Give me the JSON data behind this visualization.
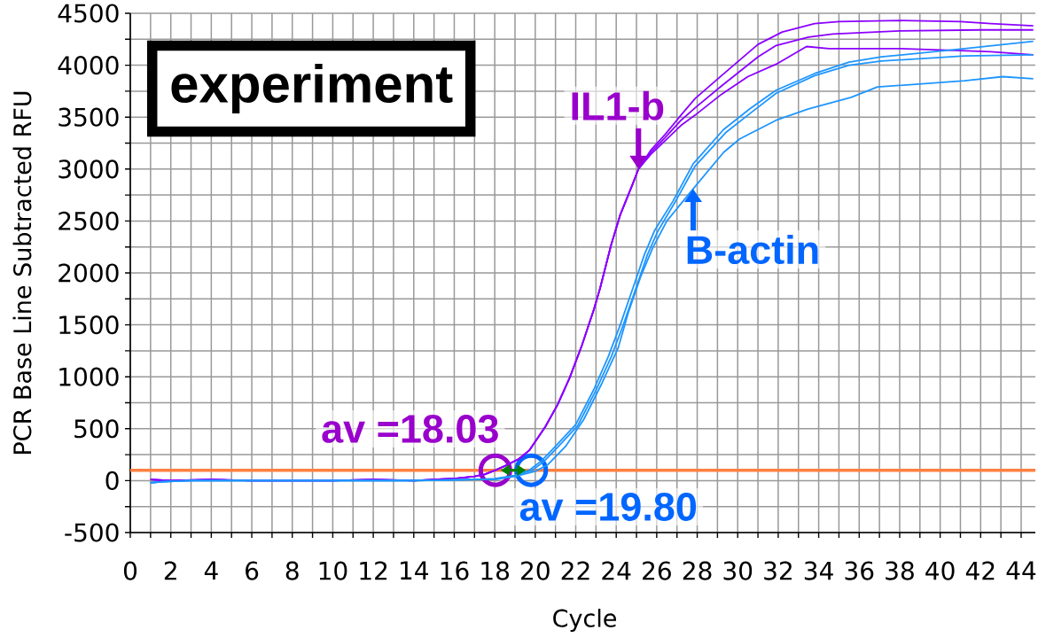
{
  "chart_data": {
    "type": "line",
    "xlabel": "Cycle",
    "ylabel": "PCR Base Line Subtracted RFU",
    "xlim": [
      0,
      44.7
    ],
    "ylim": [
      -500,
      4500
    ],
    "xticks": [
      0,
      {
        "value": 1,
        "label": null
      },
      2,
      {
        "value": 3,
        "label": null
      },
      4,
      {
        "value": 5,
        "label": null
      },
      6,
      {
        "value": 7,
        "label": null
      },
      8,
      {
        "value": 9,
        "label": null
      },
      10,
      {
        "value": 11,
        "label": null
      },
      12,
      {
        "value": 13,
        "label": null
      },
      14,
      {
        "value": 15,
        "label": null
      },
      16,
      {
        "value": 17,
        "label": null
      },
      18,
      {
        "value": 19,
        "label": null
      },
      20,
      {
        "value": 21,
        "label": null
      },
      22,
      {
        "value": 23,
        "label": null
      },
      24,
      {
        "value": 25,
        "label": null
      },
      26,
      {
        "value": 27,
        "label": null
      },
      28,
      {
        "value": 29,
        "label": null
      },
      30,
      {
        "value": 31,
        "label": null
      },
      32,
      {
        "value": 33,
        "label": null
      },
      34,
      {
        "value": 35,
        "label": null
      },
      36,
      {
        "value": 37,
        "label": null
      },
      38,
      {
        "value": 39,
        "label": null
      },
      40,
      {
        "value": 41,
        "label": null
      },
      42,
      {
        "value": 43,
        "label": null
      },
      44
    ],
    "yticks": [
      -500,
      {
        "value": -250,
        "label": null
      },
      0,
      {
        "value": 250,
        "label": null
      },
      500,
      {
        "value": 750,
        "label": null
      },
      1000,
      {
        "value": 1250,
        "label": null
      },
      1500,
      {
        "value": 1750,
        "label": null
      },
      2000,
      {
        "value": 2250,
        "label": null
      },
      2500,
      {
        "value": 2750,
        "label": null
      },
      3000,
      {
        "value": 3250,
        "label": null
      },
      3500,
      {
        "value": 3750,
        "label": null
      },
      4000,
      {
        "value": 4250,
        "label": null
      },
      4500
    ],
    "grid": true,
    "series": [
      {
        "color": "#8c00ff",
        "x": [
          1,
          2,
          4,
          6,
          8,
          10,
          12,
          14,
          15,
          16,
          17,
          17.5,
          18.03,
          18.6,
          19.2,
          19.7,
          20.5,
          21.1,
          21.7,
          22.3,
          22.9,
          23.2,
          23.75,
          24.2,
          24.8,
          25.1,
          25.7,
          26.4,
          27.2,
          27.9,
          29.2,
          31,
          32.2,
          33.8,
          35,
          38,
          41,
          42.5,
          44.6
        ],
        "values": [
          10,
          0,
          10,
          0,
          0,
          0,
          10,
          0,
          10,
          20,
          40,
          60,
          100,
          150,
          210,
          290,
          520,
          730,
          990,
          1300,
          1650,
          1850,
          2270,
          2560,
          2850,
          3000,
          3180,
          3330,
          3520,
          3680,
          3900,
          4200,
          4320,
          4400,
          4420,
          4430,
          4420,
          4400,
          4380
        ]
      },
      {
        "color": "#8c00ff",
        "x": [
          1,
          2,
          4,
          6,
          8,
          10,
          12,
          14,
          15,
          16,
          17,
          17.5,
          18.03,
          18.6,
          19.2,
          19.7,
          20.5,
          21.1,
          21.7,
          22.3,
          22.9,
          23.2,
          23.75,
          24.2,
          24.8,
          25.1,
          25.7,
          26.4,
          27.2,
          27.9,
          29.2,
          31,
          31.9,
          33.5,
          34.7,
          38,
          42,
          44.6
        ],
        "values": [
          10,
          0,
          10,
          0,
          0,
          0,
          10,
          0,
          10,
          20,
          40,
          60,
          100,
          150,
          210,
          290,
          520,
          730,
          990,
          1300,
          1650,
          1850,
          2270,
          2560,
          2850,
          3000,
          3160,
          3300,
          3470,
          3590,
          3800,
          4080,
          4190,
          4270,
          4300,
          4330,
          4340,
          4340
        ]
      },
      {
        "color": "#8c00ff",
        "x": [
          1,
          2,
          4,
          6,
          8,
          10,
          12,
          14,
          15,
          16,
          17,
          17.5,
          18.03,
          18.6,
          19.2,
          19.7,
          20.5,
          21.1,
          21.7,
          22.3,
          22.9,
          23.2,
          23.75,
          24.2,
          24.8,
          25.1,
          25.7,
          26.4,
          27.2,
          27.9,
          29.2,
          30.5,
          31.9,
          33.4,
          34.5,
          38,
          41,
          42.5,
          44.6
        ],
        "values": [
          10,
          0,
          10,
          0,
          0,
          0,
          10,
          0,
          10,
          20,
          40,
          60,
          100,
          150,
          210,
          290,
          520,
          730,
          990,
          1300,
          1650,
          1850,
          2270,
          2560,
          2850,
          3000,
          3140,
          3270,
          3420,
          3520,
          3720,
          3890,
          4010,
          4180,
          4160,
          4160,
          4140,
          4130,
          4100
        ]
      },
      {
        "color": "#1e96ff",
        "x": [
          1,
          1.6,
          3,
          6,
          10,
          14,
          17,
          18,
          19,
          19.7,
          20.3,
          21,
          22,
          22.9,
          23.6,
          24.2,
          24.8,
          25.4,
          25.9,
          26.8,
          27.8,
          29.3,
          30.6,
          31.9,
          33.8,
          35.5,
          37.1,
          41.2,
          44.6
        ],
        "values": [
          -20,
          -10,
          0,
          0,
          0,
          0,
          10,
          20,
          50,
          100,
          190,
          330,
          540,
          880,
          1190,
          1500,
          1840,
          2180,
          2410,
          2690,
          3050,
          3380,
          3580,
          3760,
          3920,
          4030,
          4080,
          4160,
          4230
        ]
      },
      {
        "color": "#1e96ff",
        "x": [
          1,
          1.6,
          3,
          6,
          10,
          14,
          17,
          18,
          19,
          19.85,
          20.4,
          21.1,
          22.1,
          23,
          23.75,
          24.35,
          24.95,
          25.55,
          26.05,
          26.9,
          27.9,
          29.4,
          30.7,
          31.9,
          33.8,
          35.5,
          37.1,
          41.2,
          44.6
        ],
        "values": [
          -20,
          -10,
          0,
          0,
          0,
          0,
          10,
          10,
          50,
          100,
          180,
          320,
          530,
          870,
          1190,
          1500,
          1840,
          2180,
          2400,
          2680,
          3030,
          3350,
          3550,
          3730,
          3900,
          4000,
          4040,
          4090,
          4100
        ]
      },
      {
        "color": "#1e96ff",
        "x": [
          1,
          1.6,
          3,
          6,
          10,
          14,
          17,
          18,
          19,
          20,
          20.6,
          21.5,
          22.4,
          23.3,
          24.1,
          24.6,
          25.2,
          25.8,
          26.5,
          27.8,
          29.3,
          30.1,
          31.9,
          33.5,
          35.6,
          36.9,
          41.2,
          43.1,
          44.6
        ],
        "values": [
          -20,
          -10,
          0,
          0,
          0,
          0,
          10,
          10,
          40,
          90,
          150,
          330,
          590,
          940,
          1280,
          1620,
          1960,
          2240,
          2500,
          2810,
          3160,
          3290,
          3470,
          3580,
          3690,
          3790,
          3850,
          3890,
          3870
        ]
      }
    ],
    "ref_lines": [
      {
        "axis": "y",
        "value": 100,
        "color": "#ff8040"
      }
    ],
    "annotations": [
      "experiment",
      {
        "text": "IL1-b",
        "x": 25.1,
        "y": 3000
      },
      {
        "text": "B-actin",
        "x": 27.8,
        "y": 2810
      },
      {
        "text": "av =18.03",
        "x": 18.03,
        "y": 100
      },
      {
        "text": "av =19.80",
        "x": 19.8,
        "y": 100
      }
    ]
  }
}
